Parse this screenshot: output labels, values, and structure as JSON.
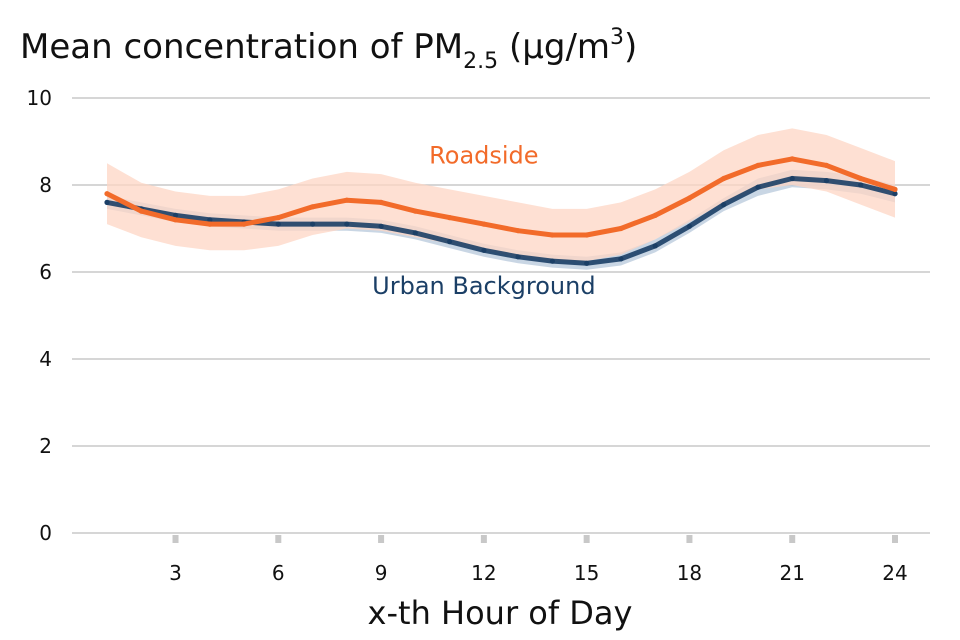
{
  "chart_data": {
    "type": "line",
    "title": {
      "main": "Mean concentration of PM",
      "subscript": "2.5",
      "unit_open": " (μg/m",
      "superscript": "3",
      "unit_close": ")"
    },
    "xlabel": "x-th Hour of Day",
    "ylabel": "",
    "xlim": [
      0,
      24.5
    ],
    "ylim": [
      0,
      10
    ],
    "xticks": [
      3,
      6,
      9,
      12,
      15,
      18,
      21,
      24
    ],
    "yticks": [
      0,
      2,
      4,
      6,
      8,
      10
    ],
    "grid": "horizontal",
    "x": [
      1,
      2,
      3,
      4,
      5,
      6,
      7,
      8,
      9,
      10,
      11,
      12,
      13,
      14,
      15,
      16,
      17,
      18,
      19,
      20,
      21,
      22,
      23,
      24
    ],
    "series": [
      {
        "name": "Roadside",
        "color": "#f26b2a",
        "band_color": "#fdd6c4",
        "values": [
          7.8,
          7.4,
          7.2,
          7.1,
          7.1,
          7.25,
          7.5,
          7.65,
          7.6,
          7.4,
          7.25,
          7.1,
          6.95,
          6.85,
          6.85,
          7.0,
          7.3,
          7.7,
          8.15,
          8.45,
          8.6,
          8.45,
          8.15,
          7.9
        ],
        "lower": [
          7.1,
          6.8,
          6.6,
          6.5,
          6.5,
          6.6,
          6.85,
          7.0,
          6.95,
          6.8,
          6.65,
          6.5,
          6.35,
          6.25,
          6.25,
          6.4,
          6.75,
          7.15,
          7.6,
          7.9,
          8.0,
          7.85,
          7.55,
          7.25
        ],
        "upper": [
          8.5,
          8.05,
          7.85,
          7.75,
          7.75,
          7.9,
          8.15,
          8.3,
          8.25,
          8.05,
          7.9,
          7.75,
          7.6,
          7.45,
          7.45,
          7.6,
          7.9,
          8.3,
          8.8,
          9.15,
          9.3,
          9.15,
          8.85,
          8.55
        ]
      },
      {
        "name": "Urban Background",
        "color": "#1b3f66",
        "band_color": "#b7c8db",
        "values": [
          7.6,
          7.45,
          7.3,
          7.2,
          7.15,
          7.1,
          7.1,
          7.1,
          7.05,
          6.9,
          6.7,
          6.5,
          6.35,
          6.25,
          6.2,
          6.3,
          6.6,
          7.05,
          7.55,
          7.95,
          8.15,
          8.1,
          8.0,
          7.8
        ],
        "lower": [
          7.45,
          7.3,
          7.15,
          7.05,
          7.0,
          6.95,
          6.95,
          6.95,
          6.9,
          6.75,
          6.55,
          6.35,
          6.2,
          6.1,
          6.05,
          6.15,
          6.45,
          6.9,
          7.4,
          7.75,
          7.95,
          7.9,
          7.8,
          7.6
        ],
        "upper": [
          7.75,
          7.6,
          7.45,
          7.35,
          7.3,
          7.25,
          7.25,
          7.25,
          7.2,
          7.05,
          6.85,
          6.65,
          6.5,
          6.4,
          6.35,
          6.45,
          6.75,
          7.2,
          7.7,
          8.15,
          8.35,
          8.3,
          8.2,
          8.0
        ]
      }
    ],
    "annotations": [
      {
        "text": "Roadside",
        "x": 12,
        "y": 8.5,
        "series": "Roadside"
      },
      {
        "text": "Urban Background",
        "x": 12,
        "y": 5.5,
        "series": "Urban Background"
      }
    ]
  }
}
